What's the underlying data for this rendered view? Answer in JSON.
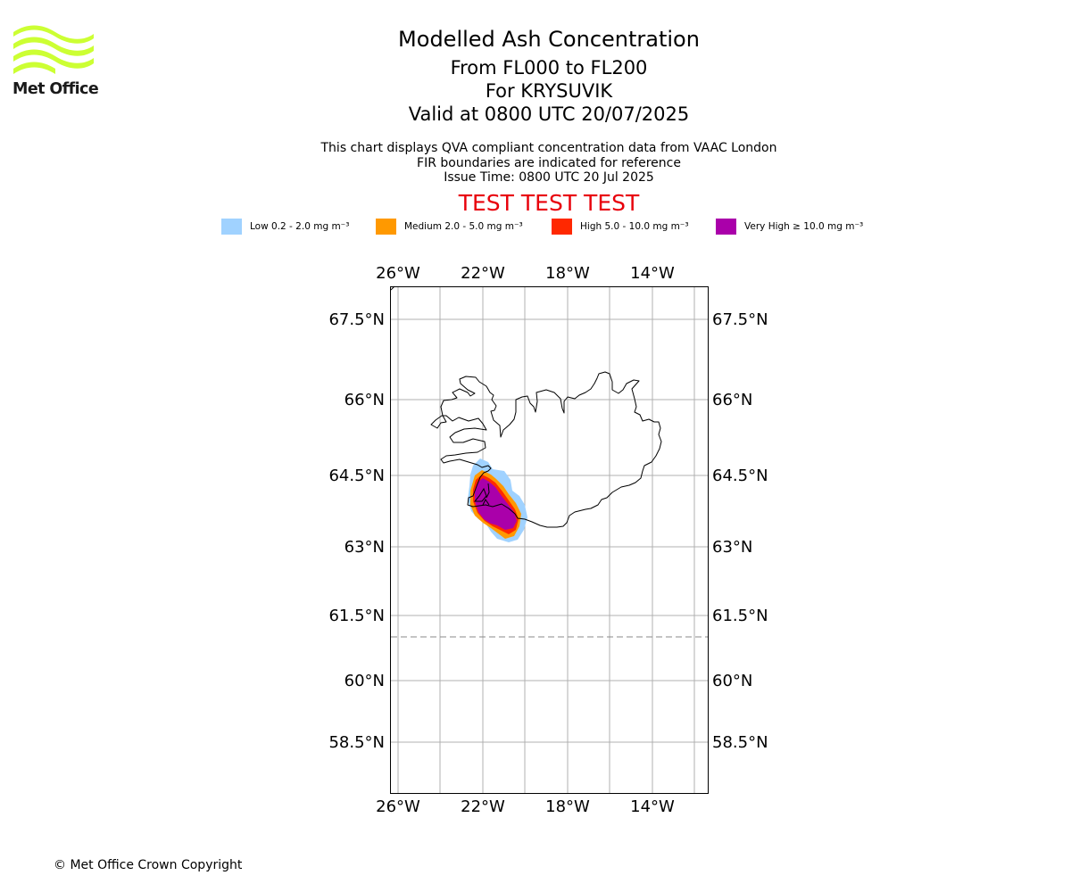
{
  "logo": {
    "text": "Met Office",
    "color": "#ccff33"
  },
  "title": {
    "line1": "Modelled Ash Concentration",
    "line2": "From FL000 to FL200",
    "line3": "For KRYSUVIK",
    "line4": "Valid at 0800 UTC 20/07/2025"
  },
  "subtitle": {
    "line1": "This chart displays QVA compliant concentration data from VAAC London",
    "line2": "FIR boundaries are indicated for reference",
    "line3": "Issue Time: 0800 UTC 20 Jul 2025"
  },
  "banner": {
    "text": "TEST TEST TEST",
    "color": "#e8000b"
  },
  "legend": [
    {
      "label": "Low 0.2 - 2.0 mg m⁻³",
      "color": "#a0d2ff"
    },
    {
      "label": "Medium 2.0 - 5.0 mg m⁻³",
      "color": "#ff9900"
    },
    {
      "label": "High 5.0 - 10.0 mg m⁻³",
      "color": "#ff2800"
    },
    {
      "label": "Very High  ≥  10.0 mg m⁻³",
      "color": "#aa00aa"
    }
  ],
  "map": {
    "lon_ticks": [
      "26°W",
      "22°W",
      "18°W",
      "14°W"
    ],
    "lat_ticks": [
      "67.5°N",
      "66°N",
      "64.5°N",
      "63°N",
      "61.5°N",
      "60°N",
      "58.5°N"
    ]
  },
  "copyright": "© Met Office Crown Copyright"
}
